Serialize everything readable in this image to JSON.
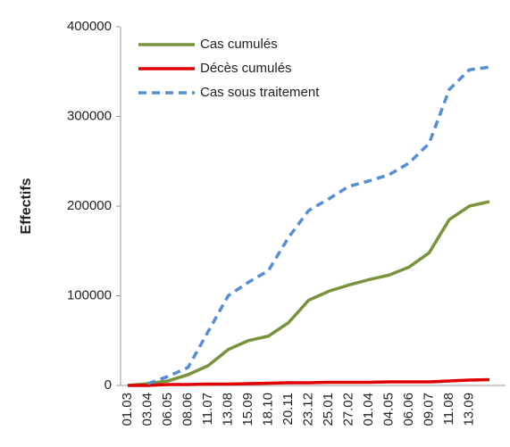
{
  "chart_data": {
    "type": "line",
    "categories": [
      "01.03",
      "03.04",
      "06.05",
      "08.06",
      "11.07",
      "13.08",
      "15.09",
      "18.10",
      "20.11",
      "23.12",
      "25.01",
      "27.02",
      "01.04",
      "04.05",
      "06.06",
      "09.07",
      "11.08",
      "13.09",
      null
    ],
    "y_label": "Effectifs",
    "series": [
      {
        "name": "Cas cumulés",
        "color": "#77933c",
        "dash": false,
        "values": [
          0,
          2000,
          5000,
          12000,
          22000,
          40000,
          50000,
          55000,
          70000,
          95000,
          105000,
          112000,
          118000,
          123000,
          132000,
          148000,
          185000,
          200000,
          205000
        ]
      },
      {
        "name": "Décès cumulés",
        "color": "#e00000",
        "dash": false,
        "values": [
          0,
          0,
          1000,
          1000,
          1500,
          1500,
          2000,
          2500,
          3000,
          3000,
          3500,
          3500,
          3500,
          4000,
          4000,
          4000,
          5000,
          6000,
          6500
        ]
      },
      {
        "name": "Cas sous traitement",
        "color": "#558ed5",
        "dash": true,
        "values": [
          null,
          2000,
          10000,
          20000,
          60000,
          100000,
          115000,
          128000,
          165000,
          195000,
          208000,
          222000,
          228000,
          235000,
          248000,
          270000,
          330000,
          352000,
          355000
        ]
      }
    ],
    "ylim": [
      0,
      400000
    ],
    "yticks": [
      0,
      100000,
      200000,
      300000,
      400000
    ],
    "grid": false
  }
}
